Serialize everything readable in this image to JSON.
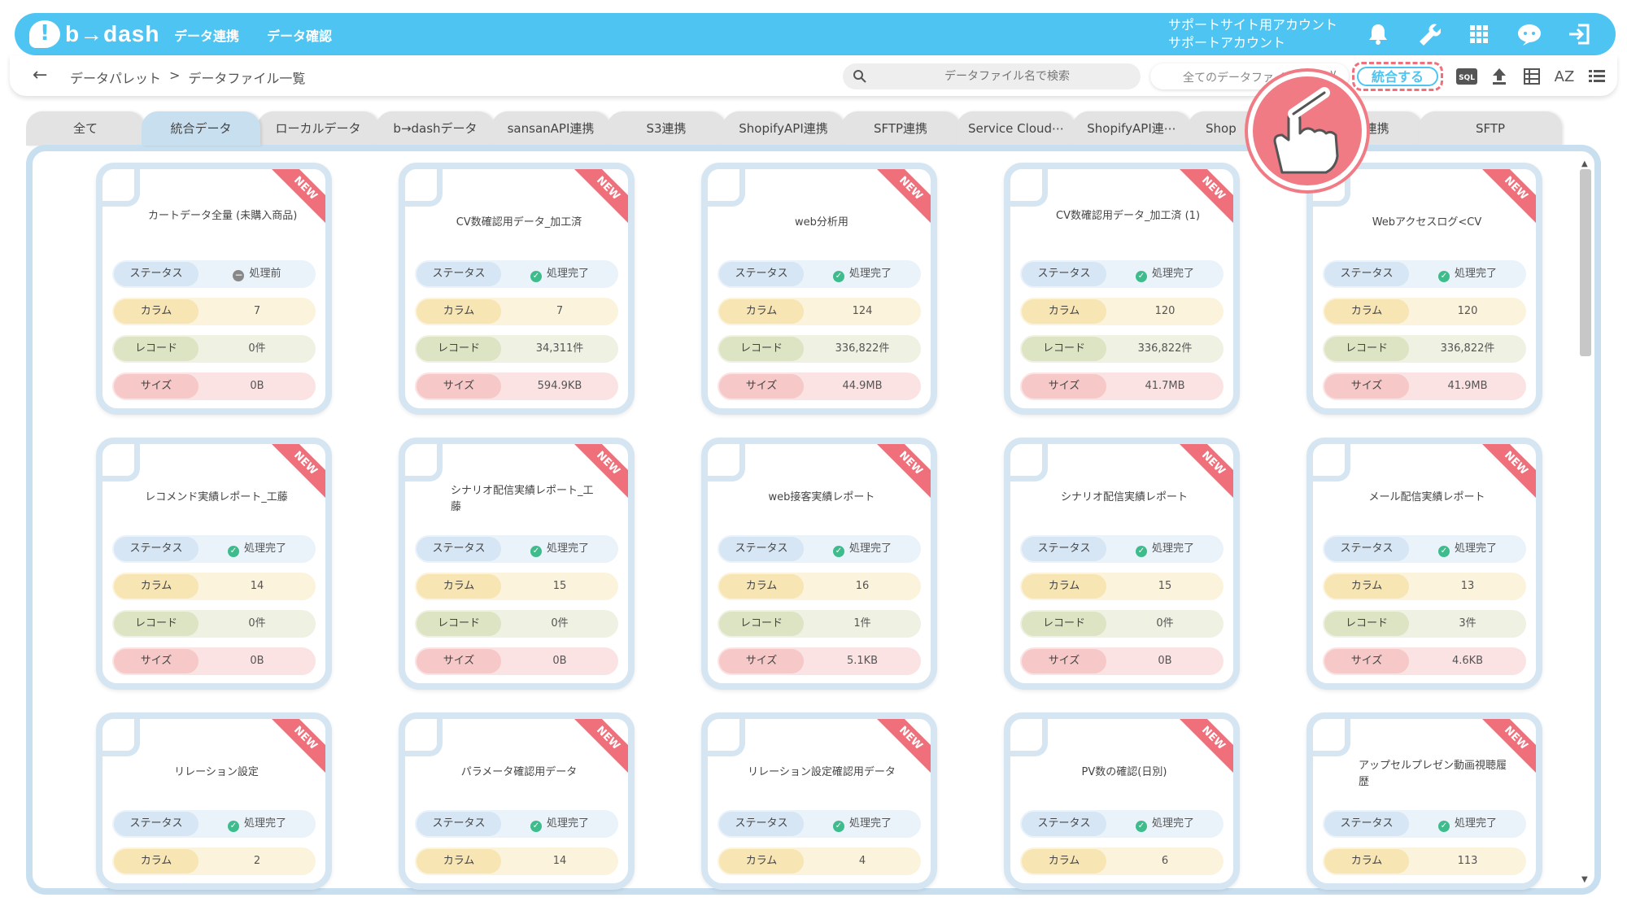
{
  "header": {
    "logo": "b→dash",
    "nav": [
      "データ連携",
      "データ確認"
    ],
    "account_line1": "サポートサイト用アカウント",
    "account_line2": "サポートアカウント",
    "icons": [
      "bell-icon",
      "wrench-icon",
      "grid-icon",
      "chat-icon",
      "logout-icon"
    ]
  },
  "subbar": {
    "breadcrumb": [
      "データパレット",
      ">",
      "データファイル一覧"
    ],
    "search_placeholder": "データファイル名で検索",
    "filter_value": "全てのデータファイル",
    "merge_button": "統合する",
    "icons": [
      "sql-icon",
      "upload-icon",
      "table-icon",
      "az-sort-icon",
      "list-icon"
    ],
    "sql_label": "SQL",
    "az_label": "AZ"
  },
  "tabs": [
    "全て",
    "統合データ",
    "ローカルデータ",
    "b→dashデータ",
    "sansanAPI連携",
    "S3連携",
    "ShopifyAPI連携",
    "SFTP連携",
    "Service Cloud⋯",
    "ShopifyAPI連⋯",
    "Shop",
    "ture 連携",
    "SFTP"
  ],
  "active_tab": "統合データ",
  "labels": {
    "status": "ステータス",
    "column": "カラム",
    "record": "レコード",
    "size": "サイズ",
    "new": "NEW"
  },
  "cards": [
    {
      "title": "カートデータ全量 (未購入商品)",
      "status": "処理前",
      "columns": "7",
      "records": "0件",
      "size": "0B"
    },
    {
      "title": "CV数確認用データ_加工済",
      "status": "処理完了",
      "columns": "7",
      "records": "34,311件",
      "size": "594.9KB"
    },
    {
      "title": "web分析用",
      "status": "処理完了",
      "columns": "124",
      "records": "336,822件",
      "size": "44.9MB"
    },
    {
      "title": "CV数確認用データ_加工済 (1)",
      "status": "処理完了",
      "columns": "120",
      "records": "336,822件",
      "size": "41.7MB"
    },
    {
      "title": "Webアクセスログ<CV",
      "status": "処理完了",
      "columns": "120",
      "records": "336,822件",
      "size": "41.9MB"
    },
    {
      "title": "レコメンド実績レポート_工藤",
      "status": "処理完了",
      "columns": "14",
      "records": "0件",
      "size": "0B"
    },
    {
      "title": "シナリオ配信実績レポート_工藤",
      "status": "処理完了",
      "columns": "15",
      "records": "0件",
      "size": "0B"
    },
    {
      "title": "web接客実績レポート",
      "status": "処理完了",
      "columns": "16",
      "records": "1件",
      "size": "5.1KB"
    },
    {
      "title": "シナリオ配信実績レポート",
      "status": "処理完了",
      "columns": "15",
      "records": "0件",
      "size": "0B"
    },
    {
      "title": "メール配信実績レポート",
      "status": "処理完了",
      "columns": "13",
      "records": "3件",
      "size": "4.6KB"
    },
    {
      "title": "リレーション設定",
      "status": "処理完了",
      "columns": "2",
      "records": "",
      "size": ""
    },
    {
      "title": "パラメータ確認用データ",
      "status": "処理完了",
      "columns": "14",
      "records": "",
      "size": ""
    },
    {
      "title": "リレーション設定確認用データ",
      "status": "処理完了",
      "columns": "4",
      "records": "",
      "size": ""
    },
    {
      "title": "PV数の確認(日別)",
      "status": "処理完了",
      "columns": "6",
      "records": "",
      "size": ""
    },
    {
      "title": "アップセルプレゼン動画視聴履歴",
      "status": "処理完了",
      "columns": "113",
      "records": "",
      "size": ""
    }
  ]
}
